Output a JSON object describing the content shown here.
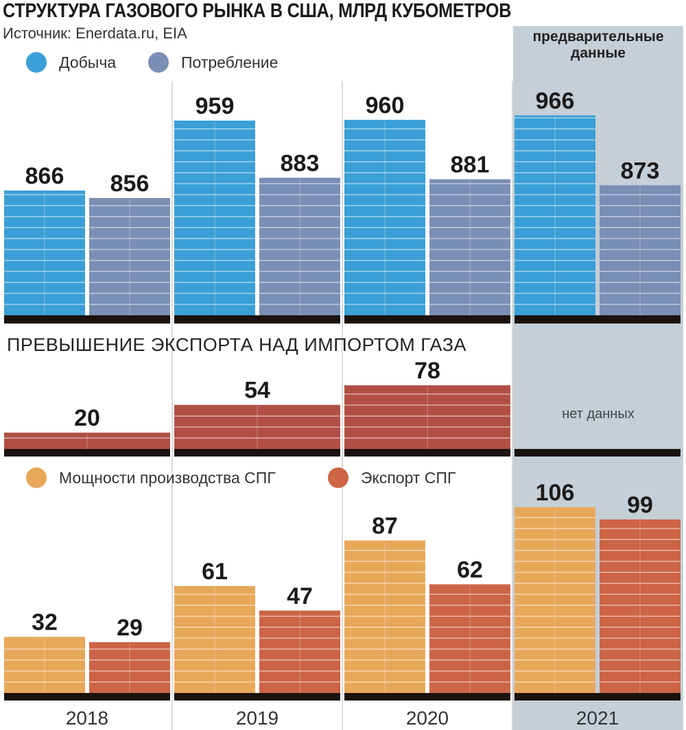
{
  "title": "СТРУКТУРА ГАЗОВОГО РЫНКА В США, МЛРД КУБОМЕТРОВ",
  "source": "Источник: Enerdata.ru, EIA",
  "preliminary_label": "предварительные данные",
  "no_data_label": "нет данных",
  "legend_top": [
    {
      "label": "Добыча",
      "color": "#3a9fd6"
    },
    {
      "label": "Потребление",
      "color": "#7a8fb5"
    }
  ],
  "legend_bottom": [
    {
      "label": "Мощности производства СПГ",
      "color": "#e8a85a"
    },
    {
      "label": "Экспорт СПГ",
      "color": "#cc6445"
    }
  ],
  "colors": {
    "preliminary_bg": "#c5cfd7",
    "baseline": "#1a120c",
    "net_export": "#b24f45"
  },
  "chart_data": [
    {
      "type": "bar",
      "categories": [
        "2018",
        "2019",
        "2020",
        "2021"
      ],
      "series": [
        {
          "name": "Добыча",
          "values": [
            866,
            959,
            960,
            966
          ],
          "color": "#3a9fd6"
        },
        {
          "name": "Потребление",
          "values": [
            856,
            883,
            881,
            873
          ],
          "color": "#7a8fb5"
        }
      ]
    },
    {
      "type": "bar",
      "title": "ПРЕВЫШЕНИЕ ЭКСПОРТА НАД ИМПОРТОМ ГАЗА",
      "categories": [
        "2018",
        "2019",
        "2020",
        "2021"
      ],
      "series": [
        {
          "values": [
            20,
            54,
            78,
            null
          ],
          "color": "#b24f45"
        }
      ]
    },
    {
      "type": "bar",
      "categories": [
        "2018",
        "2019",
        "2020",
        "2021"
      ],
      "series": [
        {
          "name": "Мощности производства СПГ",
          "values": [
            32,
            61,
            87,
            106
          ],
          "color": "#e8a85a"
        },
        {
          "name": "Экспорт СПГ",
          "values": [
            29,
            47,
            62,
            99
          ],
          "color": "#cc6445"
        }
      ]
    }
  ]
}
